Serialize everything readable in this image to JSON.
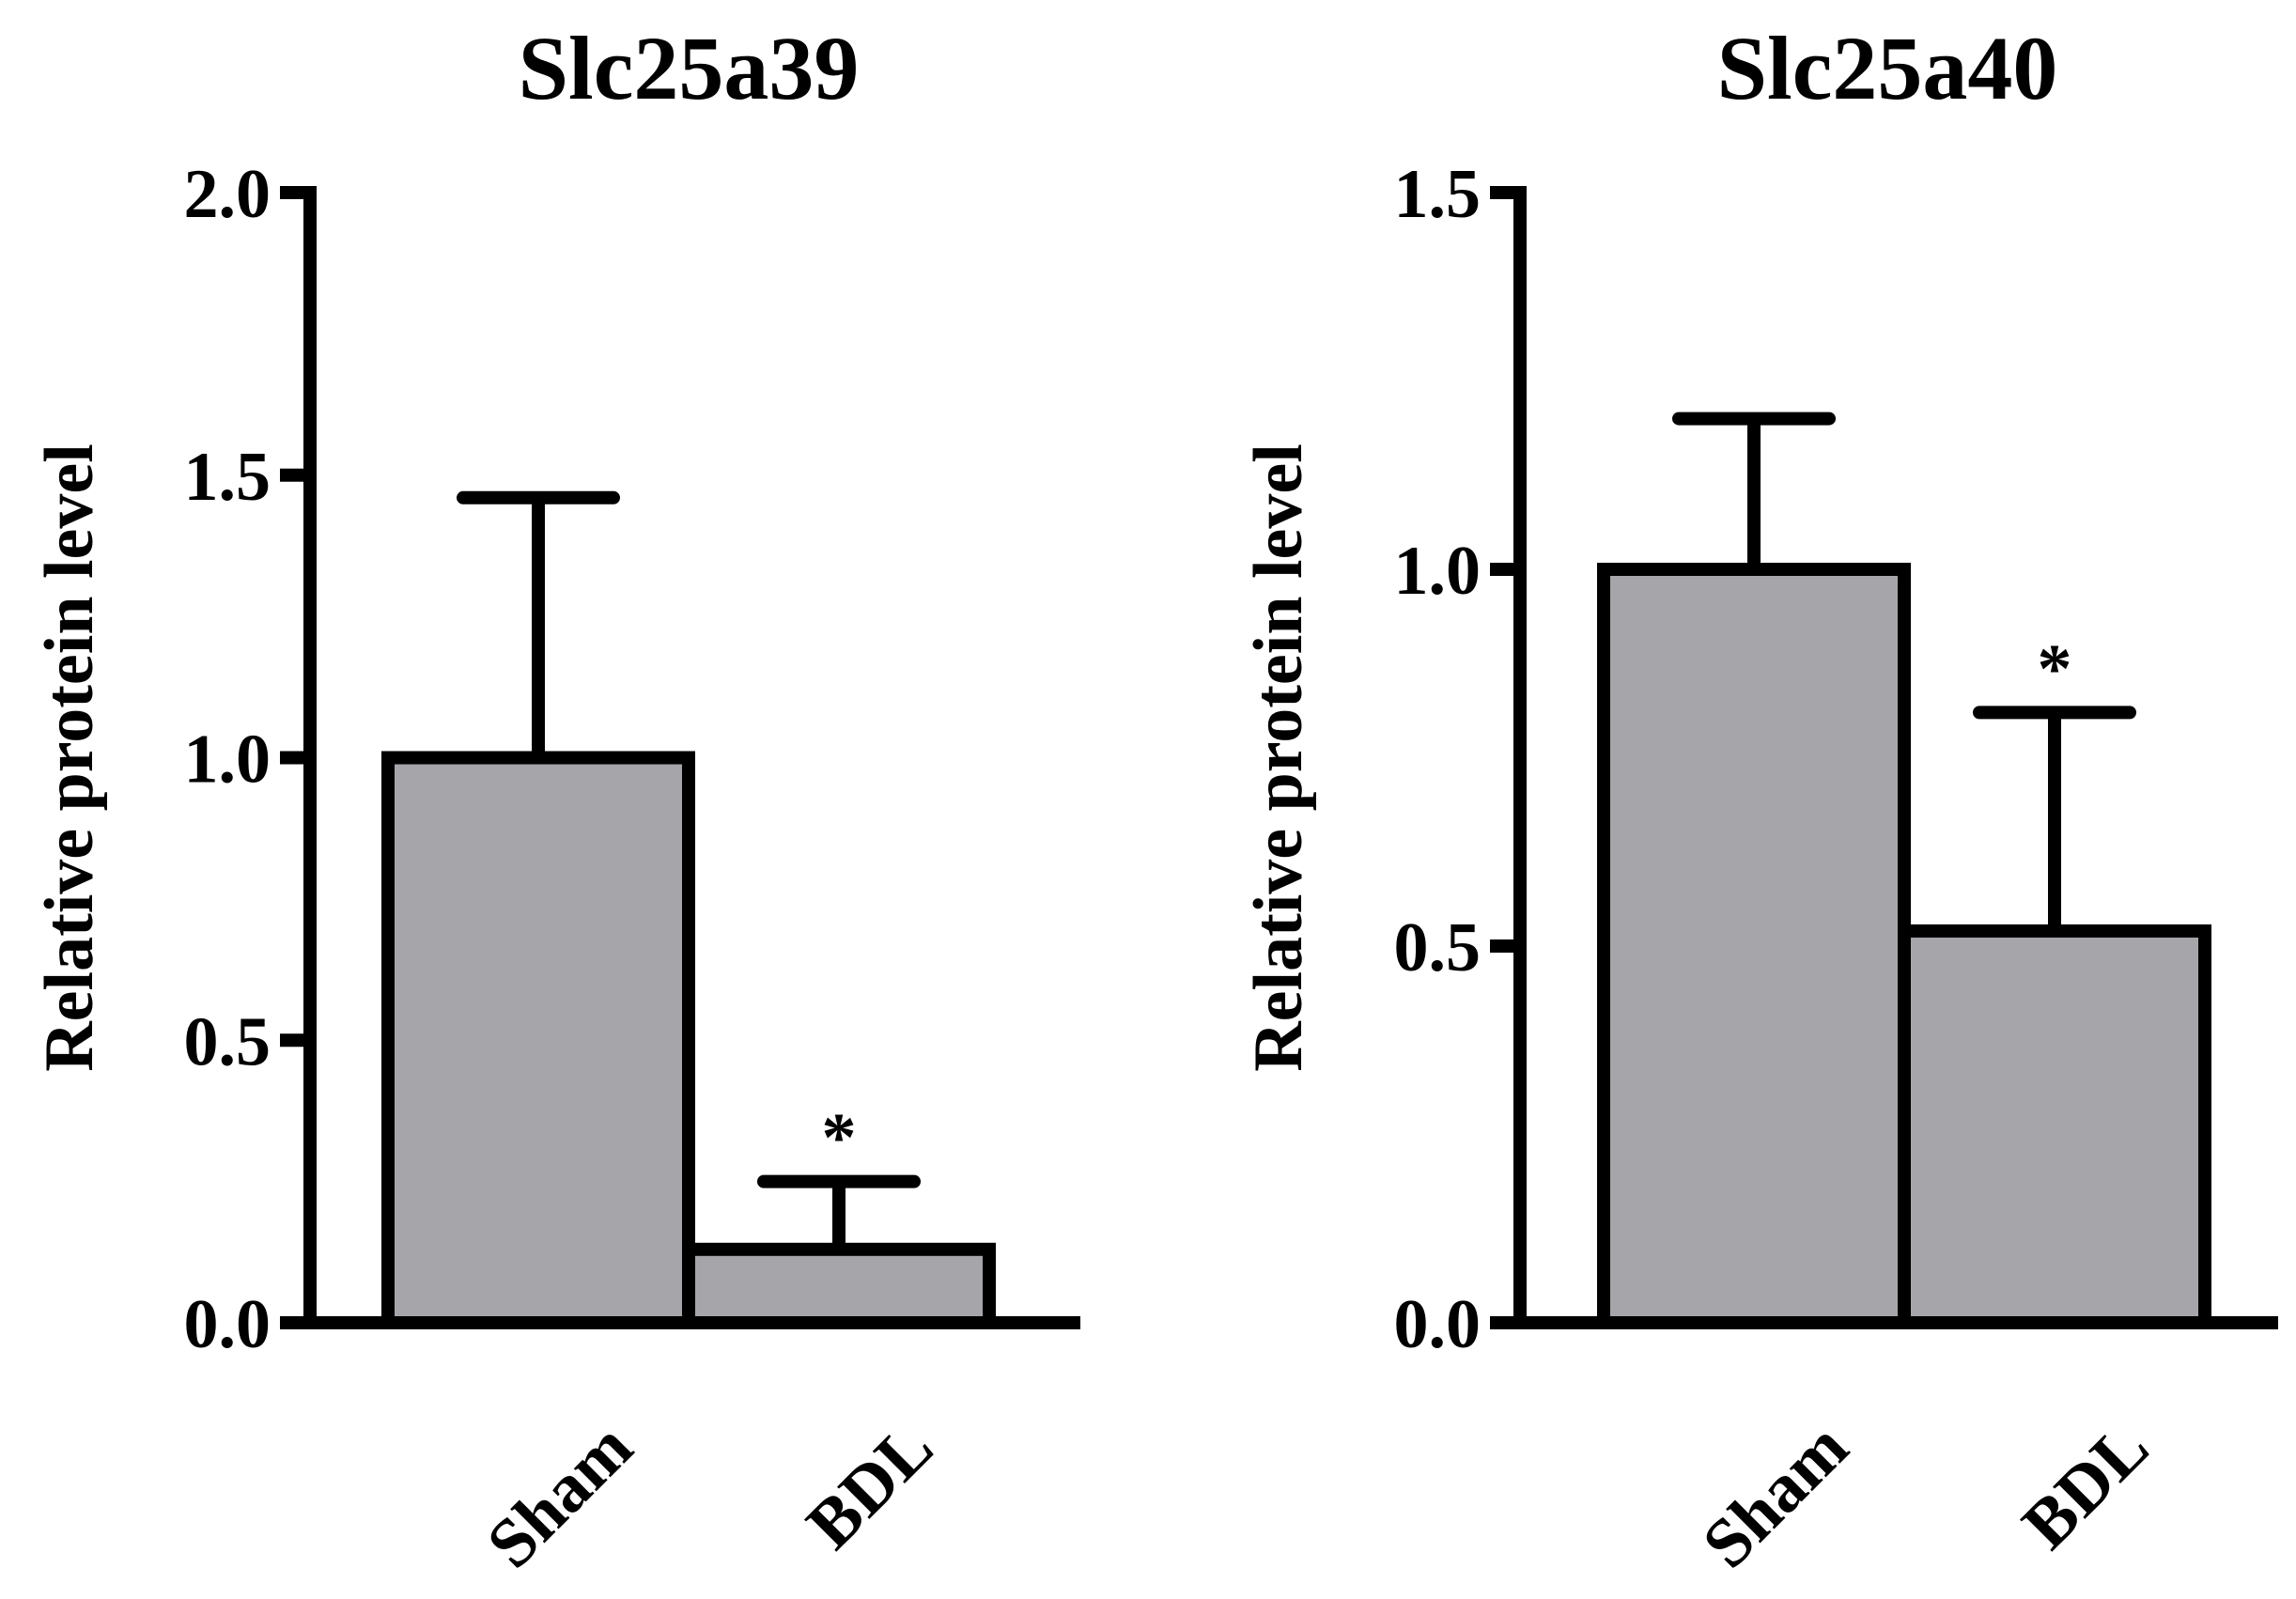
{
  "colors": {
    "bar_fill": "#a6a6aa",
    "line": "#000000",
    "background": "#ffffff"
  },
  "chart_data": [
    {
      "type": "bar",
      "title": "Slc25a39",
      "xlabel": "",
      "ylabel": "Relative protein level",
      "ylim": [
        0,
        2.0
      ],
      "yticks": [
        0.0,
        0.5,
        1.0,
        1.5,
        2.0
      ],
      "ytick_labels": [
        "0.0",
        "0.5",
        "1.0",
        "1.5",
        "2.0"
      ],
      "categories": [
        "Sham",
        "BDL"
      ],
      "values": [
        1.0,
        0.13
      ],
      "error_upper": [
        1.46,
        0.25
      ],
      "significance": [
        "",
        "*"
      ],
      "grid": false,
      "legend": "none"
    },
    {
      "type": "bar",
      "title": "Slc25a40",
      "xlabel": "",
      "ylabel": "Relative protein level",
      "ylim": [
        0,
        1.5
      ],
      "yticks": [
        0.0,
        0.5,
        1.0,
        1.5
      ],
      "ytick_labels": [
        "0.0",
        "0.5",
        "1.0",
        "1.5"
      ],
      "categories": [
        "Sham",
        "BDL"
      ],
      "values": [
        1.0,
        0.52
      ],
      "error_upper": [
        1.2,
        0.81
      ],
      "significance": [
        "",
        "*"
      ],
      "grid": false,
      "legend": "none"
    }
  ]
}
